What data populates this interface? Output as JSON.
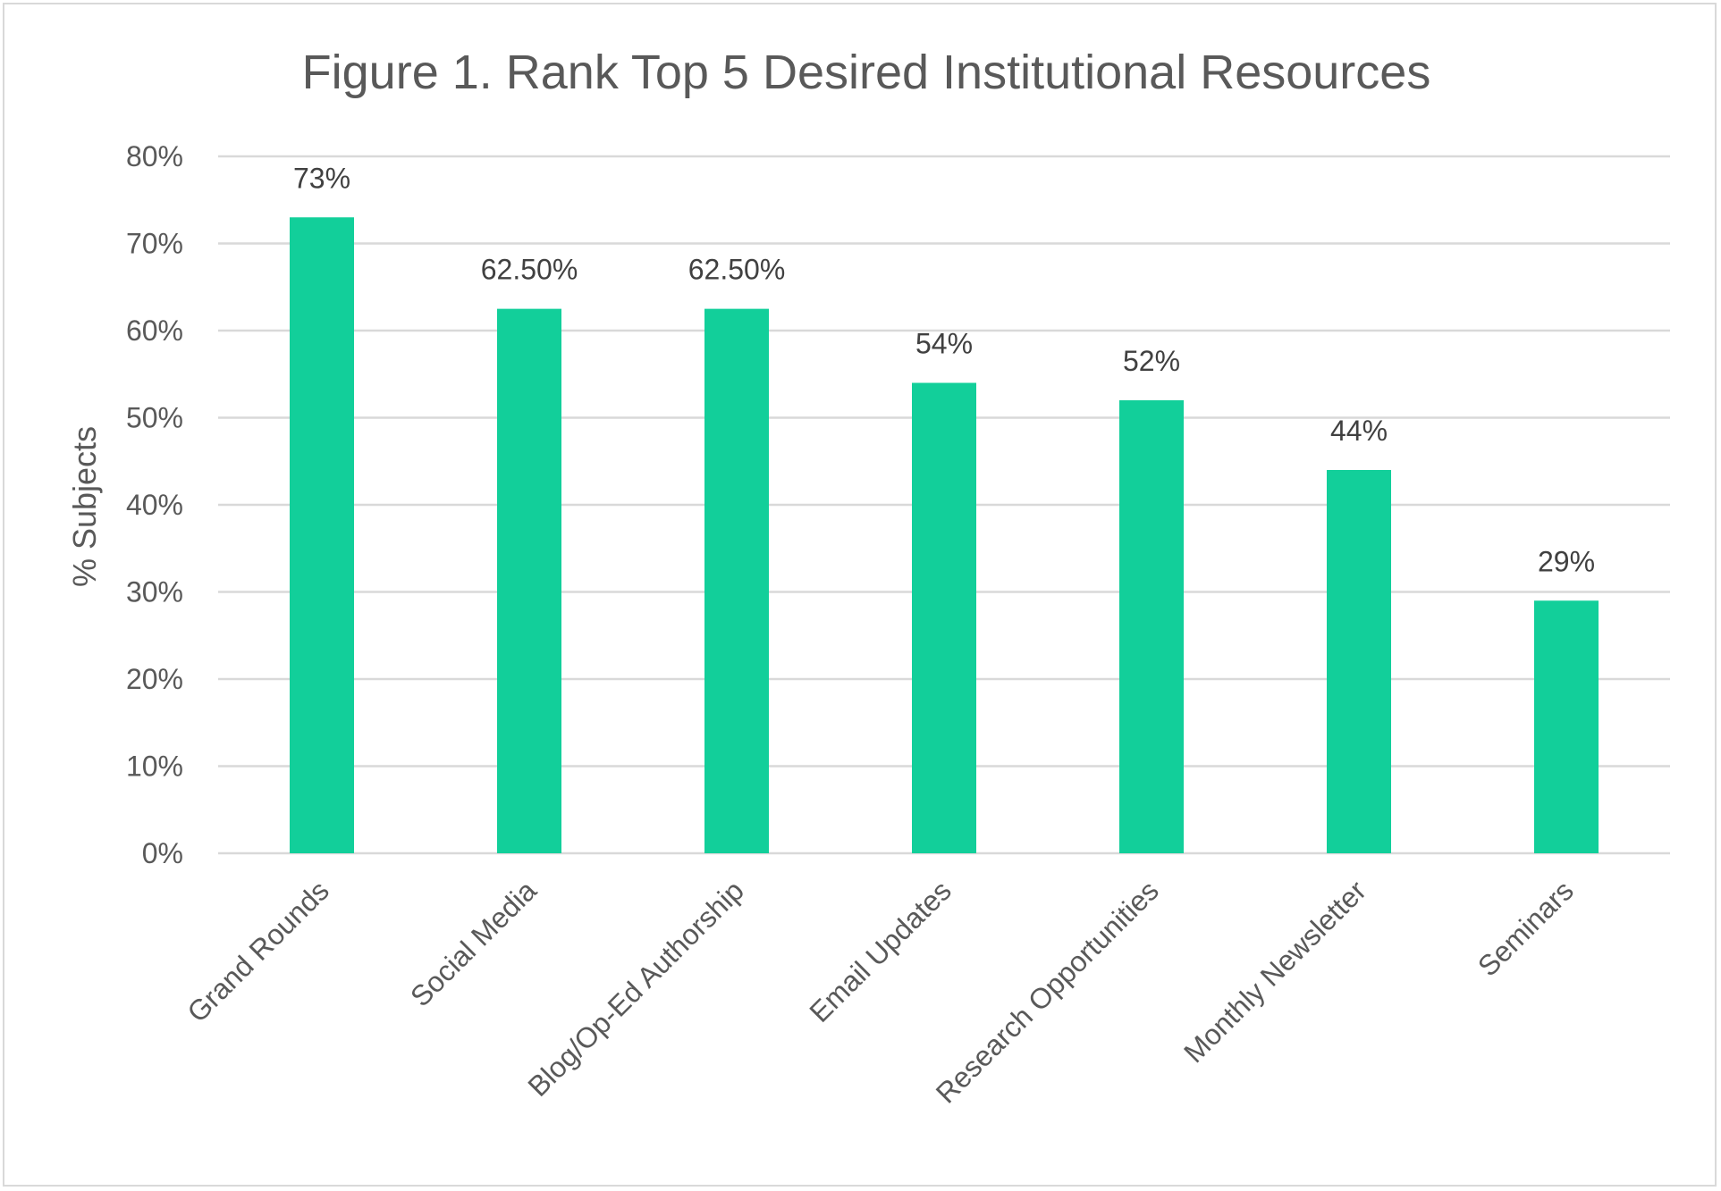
{
  "chart_data": {
    "type": "bar",
    "title": "Figure 1. Rank Top 5 Desired Institutional Resources",
    "xlabel": "",
    "ylabel": "% Subjects",
    "ylim": [
      0,
      80
    ],
    "yticks": [
      0,
      10,
      20,
      30,
      40,
      50,
      60,
      70,
      80
    ],
    "ytick_labels": [
      "0%",
      "10%",
      "20%",
      "30%",
      "40%",
      "50%",
      "60%",
      "70%",
      "80%"
    ],
    "grid": true,
    "legend": "none",
    "bar_color": "#12cf9a",
    "categories": [
      "Grand Rounds",
      "Social Media",
      "Blog/Op-Ed Authorship",
      "Email Updates",
      "Research Opportunities",
      "Monthly Newsletter",
      "Seminars"
    ],
    "values": [
      73,
      62.5,
      62.5,
      54,
      52,
      44,
      29
    ],
    "data_labels": [
      "73%",
      "62.50%",
      "62.50%",
      "54%",
      "52%",
      "44%",
      "29%"
    ]
  }
}
